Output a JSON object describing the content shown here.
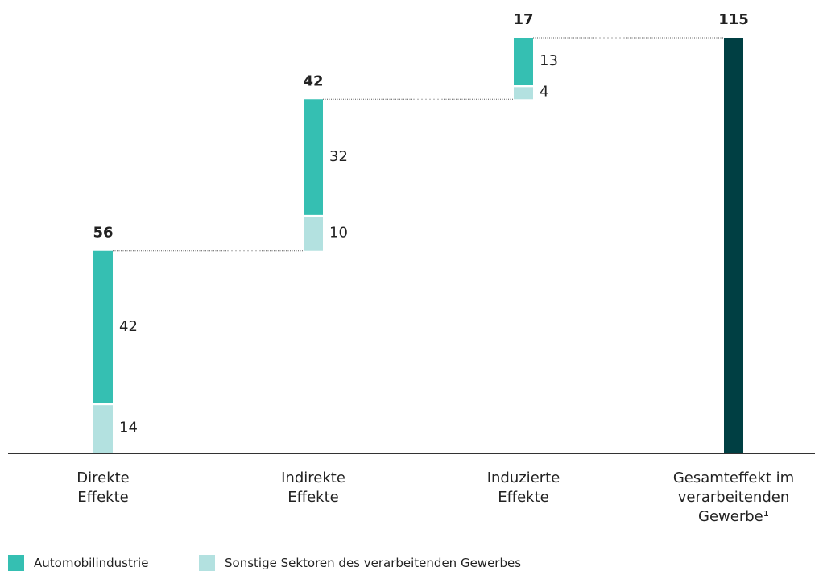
{
  "chart_data": {
    "type": "waterfall",
    "categories": [
      "Direkte\nEffekte",
      "Indirekte\nEffekte",
      "Induzierte\nEffekte",
      "Gesamteffekt im\nverarbeitenden\nGewerbe¹"
    ],
    "series": [
      {
        "name": "Sonstige Sektoren des verarbeitenden Gewerbes",
        "color": "#b3e1e0",
        "values": [
          14,
          10,
          4,
          null
        ]
      },
      {
        "name": "Automobilindustrie",
        "color": "#35bfb2",
        "values": [
          42,
          32,
          13,
          null
        ]
      }
    ],
    "totals": [
      56,
      42,
      17,
      115
    ],
    "total_color": "#003f43",
    "ylim": [
      0,
      115
    ]
  }
}
